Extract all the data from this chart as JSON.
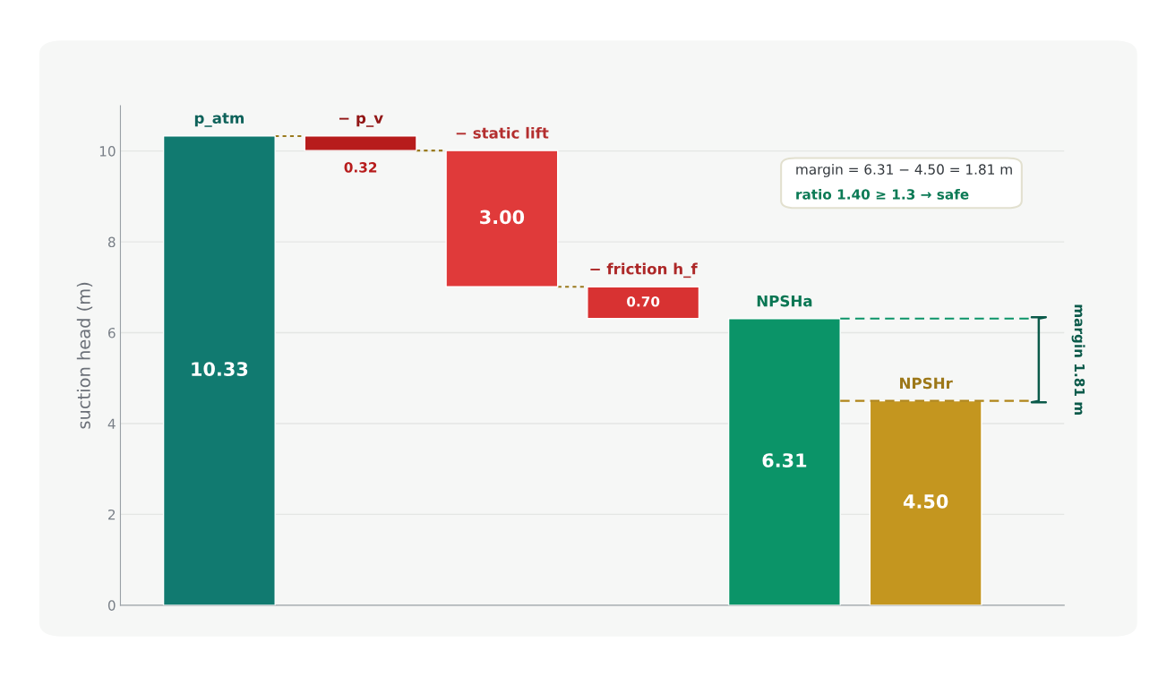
{
  "chart_data": {
    "type": "bar",
    "ylabel": "suction head (m)",
    "categories": [
      "p_atm",
      "− p_v",
      "− static lift",
      "− friction h_f",
      "NPSHa",
      "NPSHr"
    ],
    "values": [
      10.33,
      0.32,
      3.0,
      0.7,
      6.31,
      4.5
    ],
    "base": [
      0,
      10.01,
      7.01,
      6.31,
      0,
      0
    ],
    "colors": [
      "#117a70",
      "#b71c1c",
      "#e03a3a",
      "#d83232",
      "#0b9468",
      "#c4961f"
    ],
    "value_labels": [
      "10.33",
      "0.32",
      "3.00",
      "0.70",
      "6.31",
      "4.50"
    ],
    "ylim": [
      0,
      11
    ],
    "yticks": [
      0,
      2,
      4,
      6,
      8,
      10
    ],
    "grid": "y",
    "tick_labels": "y",
    "ref_lines": [
      {
        "axis": "y",
        "value": 6.31,
        "color": "#0b9468",
        "line_style": "dashed"
      },
      {
        "axis": "y",
        "value": 4.5,
        "color": "#b08518",
        "line_style": "dashed"
      }
    ],
    "annotations": [
      "margin = 6.31 − 4.50 = 1.81 m",
      "ratio 1.40 ≥ 1.3 → safe",
      "margin 1.81 m"
    ]
  }
}
